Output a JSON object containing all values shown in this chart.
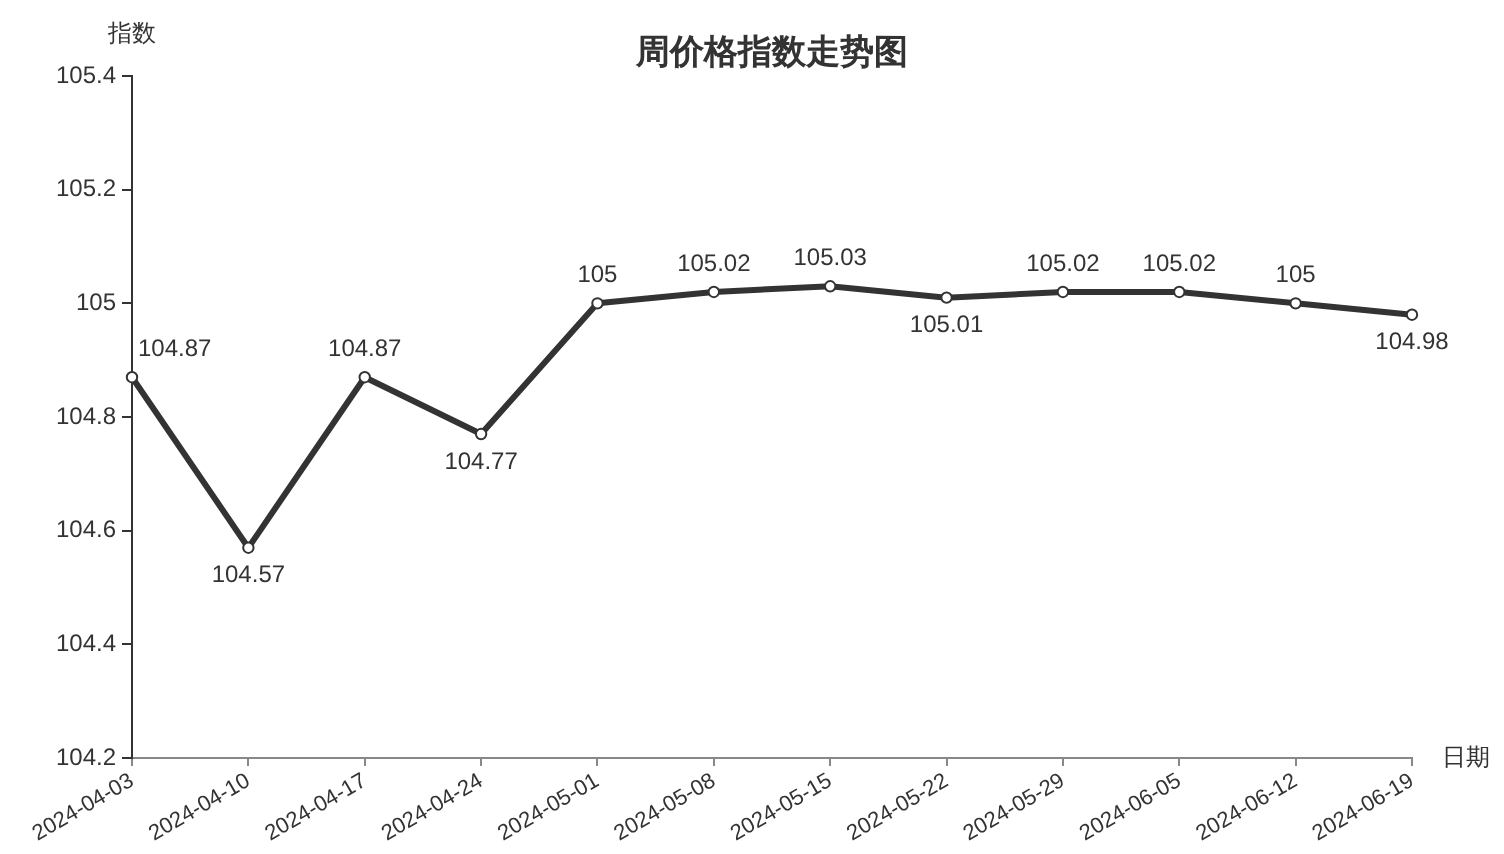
{
  "chart_data": {
    "type": "line",
    "title": "周价格指数走势图",
    "xlabel": "日期",
    "ylabel": "指数",
    "categories": [
      "2024-04-03",
      "2024-04-10",
      "2024-04-17",
      "2024-04-24",
      "2024-05-01",
      "2024-05-08",
      "2024-05-15",
      "2024-05-22",
      "2024-05-29",
      "2024-06-05",
      "2024-06-12",
      "2024-06-19"
    ],
    "series": [
      {
        "color": "#333333",
        "values": [
          104.87,
          104.57,
          104.87,
          104.77,
          105,
          105.02,
          105.03,
          105.01,
          105.02,
          105.02,
          105,
          104.98
        ]
      }
    ],
    "ylim": [
      104.2,
      105.4
    ],
    "yticks": [
      104.2,
      104.4,
      104.6,
      104.8,
      105,
      105.2,
      105.4
    ],
    "data_labels": true,
    "marker": "circle",
    "line_style": "solid"
  }
}
